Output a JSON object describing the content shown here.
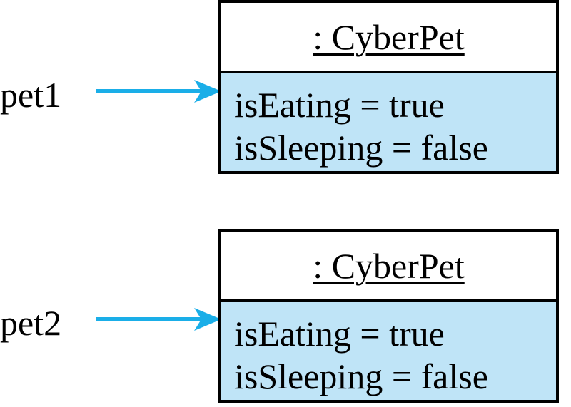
{
  "colors": {
    "arrow": "#1aaee8",
    "attributes_fill": "#bfe4f7",
    "border": "#000000"
  },
  "references": [
    {
      "variable": "pet1",
      "object": {
        "title": ": CyberPet",
        "attributes": [
          "isEating = true",
          "isSleeping = false"
        ]
      }
    },
    {
      "variable": "pet2",
      "object": {
        "title": ": CyberPet",
        "attributes": [
          "isEating = true",
          "isSleeping = false"
        ]
      }
    }
  ]
}
